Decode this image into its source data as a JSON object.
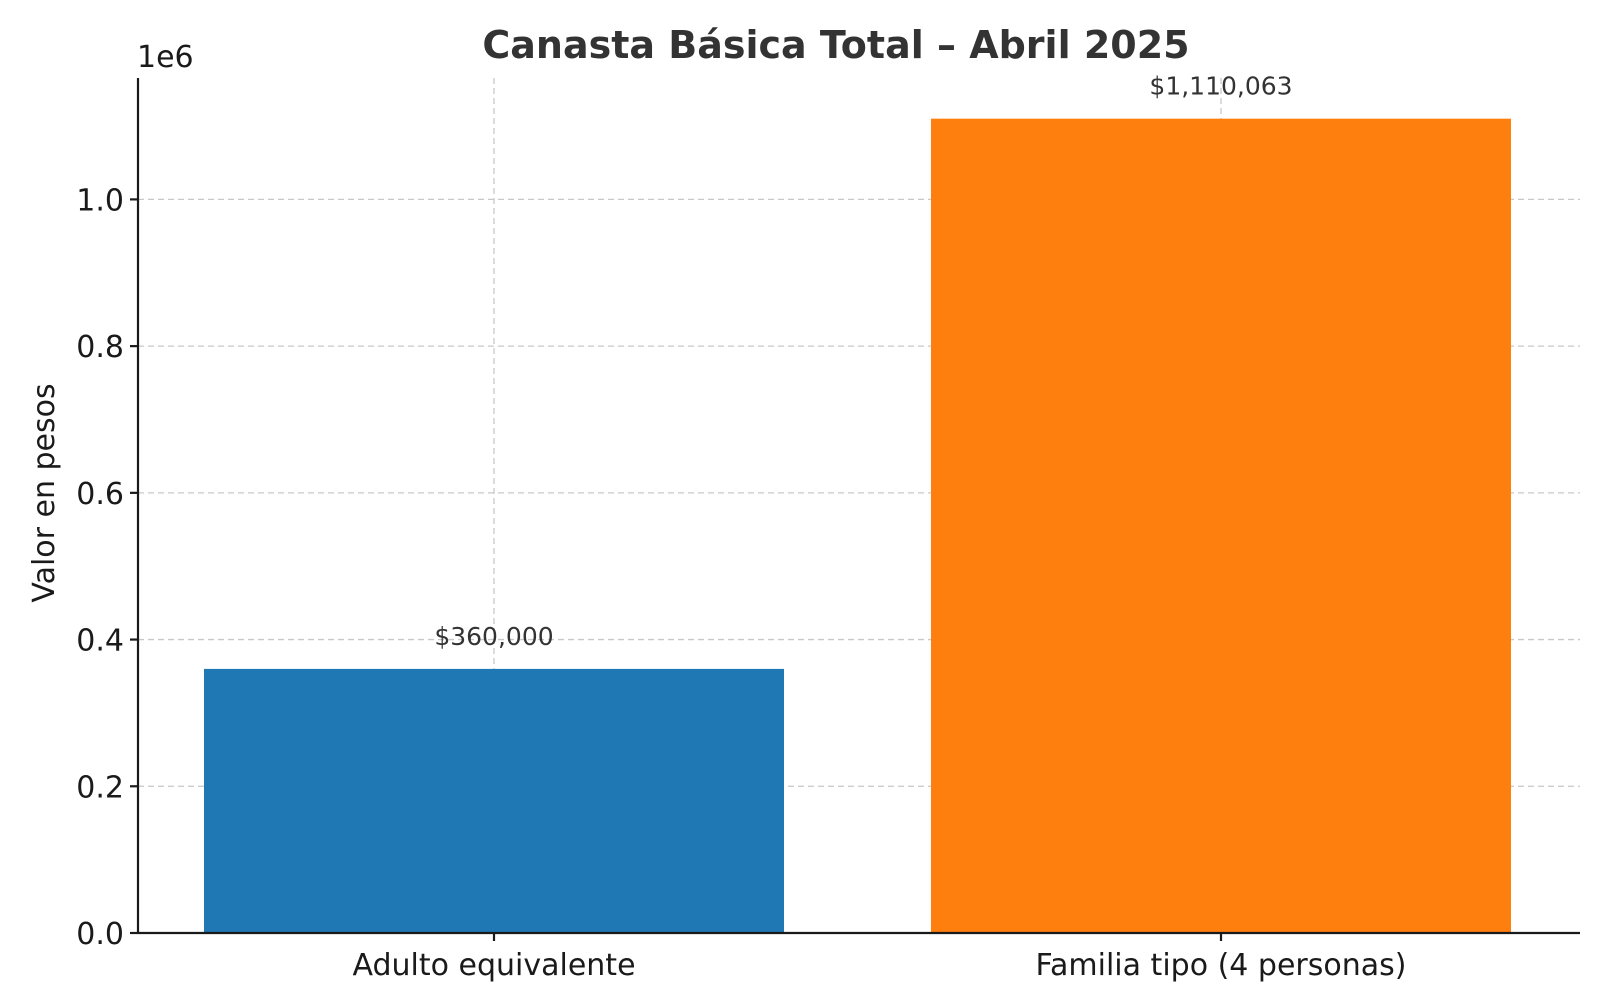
{
  "chart_data": {
    "type": "bar",
    "title": "Canasta Básica Total – Abril 2025",
    "xlabel": "",
    "ylabel": "Valor en pesos",
    "offset_label": "1e6",
    "categories": [
      "Adulto equivalente",
      "Familia tipo (4 personas)"
    ],
    "values": [
      360000,
      1110063
    ],
    "data_labels": [
      "$360,000",
      "$1,110,063"
    ],
    "colors": [
      "#1f77b4",
      "#ff7f0e"
    ],
    "ylim": [
      0,
      1165500
    ],
    "yticks": [
      0,
      200000,
      400000,
      600000,
      800000,
      1000000
    ],
    "ytick_labels": [
      "0.0",
      "0.2",
      "0.4",
      "0.6",
      "0.8",
      "1.0"
    ],
    "grid": true
  }
}
